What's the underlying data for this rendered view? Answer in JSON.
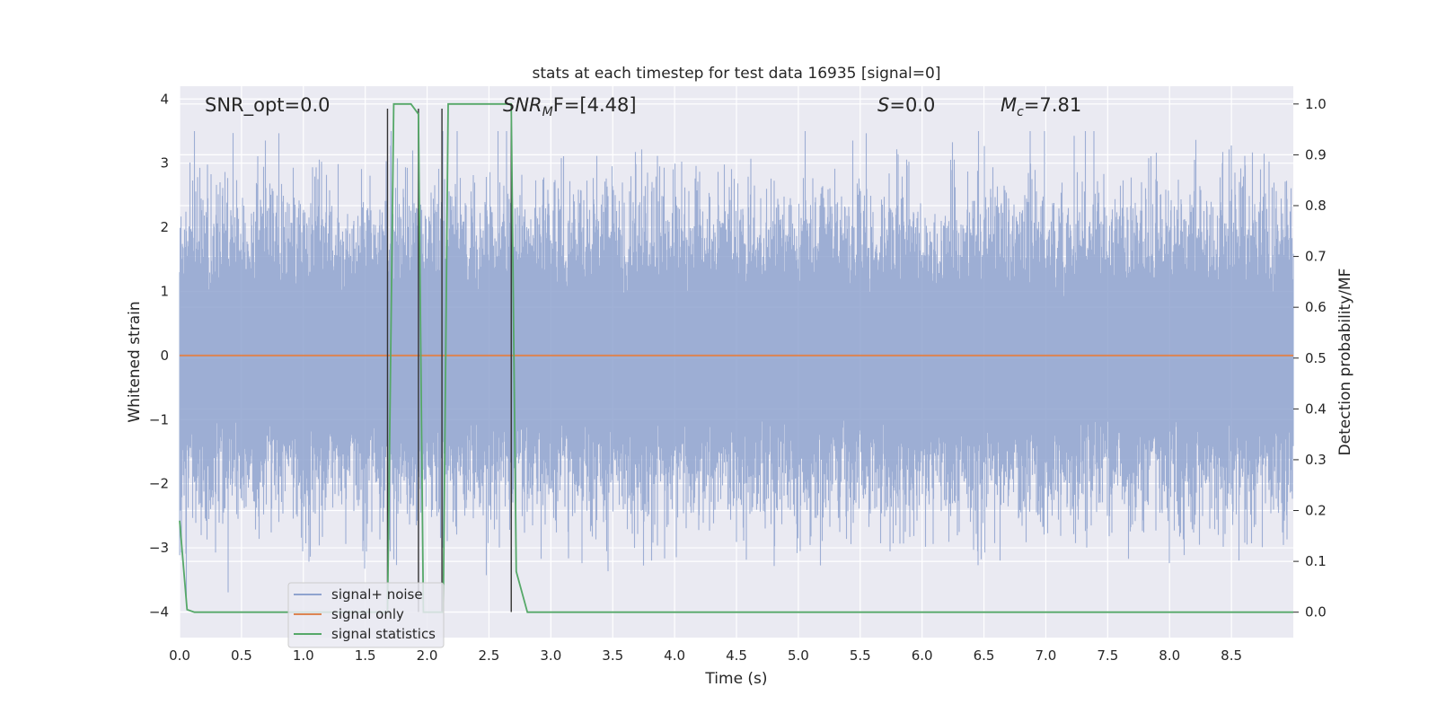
{
  "chart_data": {
    "type": "line",
    "title": "stats at each timestep for test data 16935 [signal=0]",
    "xlabel": "Time (s)",
    "ylabel": "Whitened strain",
    "y2label": "Detection probability/MF",
    "xlim": [
      0.0,
      9.0
    ],
    "ylim": [
      -4.4,
      4.2
    ],
    "y2lim": [
      -0.05,
      1.035
    ],
    "xticks": [
      0.0,
      0.5,
      1.0,
      1.5,
      2.0,
      2.5,
      3.0,
      3.5,
      4.0,
      4.5,
      5.0,
      5.5,
      6.0,
      6.5,
      7.0,
      7.5,
      8.0,
      8.5
    ],
    "xtick_labels": [
      "0.0",
      "0.5",
      "1.0",
      "1.5",
      "2.0",
      "2.5",
      "3.0",
      "3.5",
      "4.0",
      "4.5",
      "5.0",
      "5.5",
      "6.0",
      "6.5",
      "7.0",
      "7.5",
      "8.0",
      "8.5"
    ],
    "yticks": [
      -4,
      -3,
      -2,
      -1,
      0,
      1,
      2,
      3,
      4
    ],
    "ytick_labels": [
      "−4",
      "−3",
      "−2",
      "−1",
      "0",
      "1",
      "2",
      "3",
      "4"
    ],
    "y2ticks": [
      0.0,
      0.1,
      0.2,
      0.3,
      0.4,
      0.5,
      0.6,
      0.7,
      0.8,
      0.9,
      1.0
    ],
    "y2tick_labels": [
      "0.0",
      "0.1",
      "0.2",
      "0.3",
      "0.4",
      "0.5",
      "0.6",
      "0.7",
      "0.8",
      "0.9",
      "1.0"
    ],
    "grid": true,
    "legend_position": "bottom-left",
    "annotations": {
      "snr_opt": "SNR_opt=0.0",
      "snr_mf_main": "SNR",
      "snr_mf_sub": "M",
      "snr_mf_rest": "F=[4.48]",
      "s_main": "S",
      "s_rest": "=0.0",
      "mc_main": "M",
      "mc_sub": "c",
      "mc_rest": "=7.81"
    },
    "series": [
      {
        "name": "signal+ noise",
        "color": "#8fa3cf",
        "axis": "left",
        "kind": "noise",
        "typical_range": [
          -1.6,
          1.6
        ],
        "extreme_range": [
          -4.0,
          3.5
        ],
        "sample_rate_hint": 2048
      },
      {
        "name": "signal only",
        "color": "#dd8452",
        "axis": "left",
        "x": [
          0.0,
          9.0
        ],
        "y": [
          0.0,
          0.0
        ]
      },
      {
        "name": "signal statistics",
        "color": "#55a868",
        "axis": "right",
        "x": [
          0.0,
          0.06,
          0.12,
          1.68,
          1.73,
          1.87,
          1.93,
          1.97,
          2.13,
          2.17,
          2.68,
          2.72,
          2.81,
          9.0
        ],
        "y": [
          0.18,
          0.005,
          0.0,
          0.0,
          1.0,
          1.0,
          0.98,
          0.0,
          0.0,
          1.0,
          1.0,
          0.08,
          0.0,
          0.0
        ]
      }
    ],
    "vertical_markers": {
      "color": "#333333",
      "x": [
        1.68,
        1.93,
        2.12,
        2.68
      ],
      "range": [
        -4.0,
        3.85
      ]
    }
  }
}
